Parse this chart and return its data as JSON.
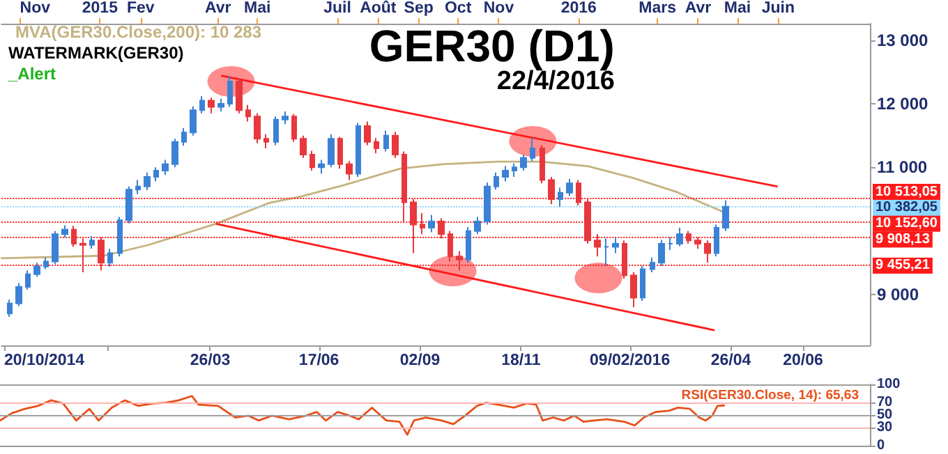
{
  "chart_data": [
    {
      "type": "candlestick",
      "title": "GER30 (D1)",
      "subtitle": "22/4/2016",
      "annotations": [
        "WATERMARK(GER30)",
        "_Alert"
      ],
      "x": [
        "2014-10-24",
        "2014-10-31",
        "2014-11-07",
        "2014-11-14",
        "2014-11-21",
        "2014-11-28",
        "2014-12-05",
        "2014-12-12",
        "2014-12-19",
        "2014-12-26",
        "2015-01-02",
        "2015-01-09",
        "2015-01-16",
        "2015-01-23",
        "2015-01-30",
        "2015-02-06",
        "2015-02-13",
        "2015-02-20",
        "2015-02-27",
        "2015-03-06",
        "2015-03-13",
        "2015-03-20",
        "2015-03-27",
        "2015-04-03",
        "2015-04-10",
        "2015-04-17",
        "2015-04-24",
        "2015-05-01",
        "2015-05-08",
        "2015-05-15",
        "2015-05-22",
        "2015-05-29",
        "2015-06-05",
        "2015-06-12",
        "2015-06-19",
        "2015-06-26",
        "2015-07-03",
        "2015-07-10",
        "2015-07-17",
        "2015-07-24",
        "2015-07-31",
        "2015-08-07",
        "2015-08-14",
        "2015-08-21",
        "2015-08-28",
        "2015-09-04",
        "2015-09-11",
        "2015-09-18",
        "2015-09-25",
        "2015-10-02",
        "2015-10-09",
        "2015-10-16",
        "2015-10-23",
        "2015-10-30",
        "2015-11-06",
        "2015-11-13",
        "2015-11-20",
        "2015-11-27",
        "2015-12-04",
        "2015-12-11",
        "2015-12-18",
        "2015-12-25",
        "2016-01-01",
        "2016-01-08",
        "2016-01-15",
        "2016-01-22",
        "2016-01-29",
        "2016-02-05",
        "2016-02-12",
        "2016-02-19",
        "2016-02-26",
        "2016-03-04",
        "2016-03-11",
        "2016-03-18",
        "2016-03-25",
        "2016-04-01",
        "2016-04-08",
        "2016-04-15",
        "2016-04-22"
      ],
      "ohlc": [
        [
          8700,
          8920,
          8650,
          8860
        ],
        [
          8860,
          9180,
          8820,
          9120
        ],
        [
          9120,
          9380,
          9080,
          9320
        ],
        [
          9320,
          9500,
          9280,
          9440
        ],
        [
          9440,
          9580,
          9400,
          9520
        ],
        [
          9520,
          10000,
          9480,
          9950
        ],
        [
          9950,
          10090,
          9900,
          10020
        ],
        [
          10020,
          10080,
          9750,
          9800
        ],
        [
          9800,
          9880,
          9350,
          9780
        ],
        [
          9780,
          9920,
          9720,
          9850
        ],
        [
          9850,
          9900,
          9380,
          9500
        ],
        [
          9500,
          9720,
          9440,
          9650
        ],
        [
          9650,
          10220,
          9600,
          10170
        ],
        [
          10170,
          10700,
          10120,
          10650
        ],
        [
          10650,
          10800,
          10580,
          10700
        ],
        [
          10700,
          10920,
          10640,
          10850
        ],
        [
          10850,
          11000,
          10780,
          10950
        ],
        [
          10950,
          11120,
          10880,
          11050
        ],
        [
          11050,
          11450,
          11000,
          11400
        ],
        [
          11400,
          11620,
          11340,
          11550
        ],
        [
          11550,
          11960,
          11500,
          11900
        ],
        [
          11900,
          12120,
          11850,
          12050
        ],
        [
          12050,
          12100,
          11850,
          11950
        ],
        [
          11950,
          12080,
          11880,
          12000
        ],
        [
          12000,
          12435,
          11950,
          12350
        ],
        [
          12350,
          12400,
          11850,
          11900
        ],
        [
          11900,
          11980,
          11720,
          11800
        ],
        [
          11800,
          11850,
          11380,
          11450
        ],
        [
          11450,
          11520,
          11300,
          11400
        ],
        [
          11400,
          11800,
          11350,
          11750
        ],
        [
          11750,
          11880,
          11680,
          11800
        ],
        [
          11800,
          11840,
          11400,
          11450
        ],
        [
          11450,
          11500,
          11150,
          11200
        ],
        [
          11200,
          11260,
          10950,
          11000
        ],
        [
          11000,
          11120,
          10900,
          11050
        ],
        [
          11050,
          11520,
          11000,
          11450
        ],
        [
          11450,
          11480,
          10980,
          11050
        ],
        [
          11050,
          11100,
          10800,
          10900
        ],
        [
          10900,
          11700,
          10850,
          11650
        ],
        [
          11650,
          11720,
          11350,
          11400
        ],
        [
          11400,
          11460,
          11220,
          11300
        ],
        [
          11300,
          11580,
          11250,
          11500
        ],
        [
          11500,
          11560,
          11150,
          11200
        ],
        [
          11200,
          11250,
          10150,
          10450
        ],
        [
          10450,
          10500,
          9650,
          10100
        ],
        [
          10100,
          10280,
          9950,
          10050
        ],
        [
          10050,
          10250,
          9980,
          10150
        ],
        [
          10150,
          10200,
          9880,
          9950
        ],
        [
          9950,
          10000,
          9520,
          9600
        ],
        [
          9600,
          9680,
          9380,
          9550
        ],
        [
          9550,
          10060,
          9500,
          10000
        ],
        [
          10000,
          10220,
          9950,
          10150
        ],
        [
          10150,
          10760,
          10100,
          10700
        ],
        [
          10700,
          10920,
          10650,
          10850
        ],
        [
          10850,
          11020,
          10780,
          10950
        ],
        [
          10950,
          11060,
          10850,
          11000
        ],
        [
          11000,
          11200,
          10950,
          11150
        ],
        [
          11150,
          11460,
          11100,
          11300
        ],
        [
          11300,
          11350,
          10750,
          10800
        ],
        [
          10800,
          10850,
          10420,
          10500
        ],
        [
          10500,
          10680,
          10380,
          10600
        ],
        [
          10600,
          10820,
          10550,
          10750
        ],
        [
          10750,
          10800,
          10400,
          10450
        ],
        [
          10450,
          10500,
          9800,
          9850
        ],
        [
          9850,
          9950,
          9600,
          9750
        ],
        [
          9750,
          9880,
          9450,
          9750
        ],
        [
          9750,
          9900,
          9650,
          9800
        ],
        [
          9800,
          9850,
          9250,
          9300
        ],
        [
          9300,
          9350,
          8800,
          8950
        ],
        [
          8950,
          9450,
          8900,
          9400
        ],
        [
          9400,
          9580,
          9350,
          9500
        ],
        [
          9500,
          9860,
          9450,
          9800
        ],
        [
          9800,
          9900,
          9700,
          9800
        ],
        [
          9800,
          10050,
          9760,
          9950
        ],
        [
          9950,
          10000,
          9800,
          9850
        ],
        [
          9850,
          9900,
          9720,
          9800
        ],
        [
          9800,
          9850,
          9500,
          9650
        ],
        [
          9650,
          10100,
          9600,
          10050
        ],
        [
          10050,
          10480,
          10000,
          10382.05
        ]
      ],
      "series": [
        {
          "type": "line",
          "name": "MVA(GER30.Close,200): 10 283",
          "color": "#c4b27f",
          "x": [
            "2014-10-18",
            "2015-01-04",
            "2015-02-07",
            "2015-03-30",
            "2015-05-10",
            "2015-06-03",
            "2015-07-06",
            "2015-08-18",
            "2015-09-19",
            "2015-10-31",
            "2015-12-03",
            "2016-01-08",
            "2016-02-12",
            "2016-03-16",
            "2016-04-22"
          ],
          "values": [
            9570,
            9610,
            9780,
            10110,
            10440,
            10540,
            10720,
            10980,
            11050,
            11090,
            11090,
            11020,
            10830,
            10610,
            10283
          ]
        },
        {
          "type": "line",
          "color": "#ff1a1a",
          "x": [
            "2015-04-04",
            "2016-05-31"
          ],
          "values": [
            12440,
            10700
          ]
        },
        {
          "type": "line",
          "color": "#ff1a1a",
          "x": [
            "2015-03-31",
            "2016-04-13"
          ],
          "values": [
            10110,
            8440
          ]
        },
        {
          "type": "scatter",
          "color": "#ff3030",
          "marker": "circle",
          "x": [
            "2015-04-11",
            "2015-11-27",
            "2015-09-27",
            "2016-01-16"
          ],
          "values": [
            12350,
            11410,
            9370,
            9260
          ]
        }
      ],
      "marker": "none",
      "legend": "top left",
      "xlim": [
        "2014-10-18",
        "2016-08-10"
      ],
      "xticks": [
        {
          "value": "2014-10-20",
          "label": "20/10/2014"
        },
        {
          "value": "2015-01-07",
          "label": null
        },
        {
          "value": "2015-03-26",
          "label": "26/03"
        },
        {
          "value": "2015-06-17",
          "label": "17/06"
        },
        {
          "value": "2015-09-02",
          "label": "02/09"
        },
        {
          "value": "2015-11-18",
          "label": "18/11"
        },
        {
          "value": "2016-02-09",
          "label": "09/02/2016"
        },
        {
          "value": "2016-04-26",
          "label": "26/04"
        },
        {
          "value": "2016-06-20",
          "label": "20/06"
        }
      ],
      "x2lim": [
        "2014-10-18",
        "2016-08-10"
      ],
      "x2ticks": [
        {
          "value": "2014-11-01",
          "label": "Nov"
        },
        {
          "value": "2015-01-01",
          "label": "2015"
        },
        {
          "value": "2015-02-01",
          "label": "Fev"
        },
        {
          "value": "2015-04-01",
          "label": "Avr"
        },
        {
          "value": "2015-05-01",
          "label": "Mai"
        },
        {
          "value": "2015-07-01",
          "label": "Juil"
        },
        {
          "value": "2015-08-01",
          "label": "Août"
        },
        {
          "value": "2015-09-01",
          "label": "Sep"
        },
        {
          "value": "2015-10-01",
          "label": "Oct"
        },
        {
          "value": "2015-11-01",
          "label": "Nov"
        },
        {
          "value": "2016-01-01",
          "label": "2016"
        },
        {
          "value": "2016-03-01",
          "label": "Mars"
        },
        {
          "value": "2016-04-01",
          "label": "Avr"
        },
        {
          "value": "2016-05-01",
          "label": "Mai"
        },
        {
          "value": "2016-06-01",
          "label": "Juin"
        }
      ],
      "ylim": [
        8200,
        13260
      ],
      "yticks": [
        {
          "value": 9000,
          "label": "9 000"
        },
        {
          "value": 11000,
          "label": "11 000"
        },
        {
          "value": 12000,
          "label": "12 000"
        },
        {
          "value": 13000,
          "label": "13 000"
        }
      ],
      "ref_lines": [
        {
          "axis": "y",
          "value": 10513.05,
          "label": "10 513,05",
          "color": "#ff1a1a",
          "line_style": "dotted"
        },
        {
          "axis": "y",
          "value": 10382.05,
          "label": "10 382,05",
          "color": "#8fd8ff",
          "line_style": "dotted"
        },
        {
          "axis": "y",
          "value": 10152.6,
          "label": "10 152,60",
          "color": "#ff1a1a",
          "line_style": "dotted"
        },
        {
          "axis": "y",
          "value": 9908.13,
          "label": "9 908,13",
          "color": "#ff1a1a",
          "line_style": "dotted"
        },
        {
          "axis": "y",
          "value": 9455.21,
          "label": "9 455,21",
          "color": "#ff1a1a",
          "line_style": "dotted"
        }
      ]
    },
    {
      "type": "line",
      "series": [
        {
          "name": "RSI(GER30.Close, 14): 65,63",
          "color": "#e8501a",
          "x": [
            "2014-10-18",
            "2014-10-27",
            "2014-11-06",
            "2014-11-16",
            "2014-11-26",
            "2014-12-05",
            "2014-12-15",
            "2014-12-25",
            "2015-01-01",
            "2015-01-11",
            "2015-01-21",
            "2015-01-31",
            "2015-02-12",
            "2015-02-21",
            "2015-03-03",
            "2015-03-13",
            "2015-03-18",
            "2015-04-02",
            "2015-04-15",
            "2015-04-25",
            "2015-05-03",
            "2015-05-13",
            "2015-05-26",
            "2015-06-08",
            "2015-06-16",
            "2015-06-23",
            "2015-07-02",
            "2015-07-11",
            "2015-07-18",
            "2015-07-28",
            "2015-08-08",
            "2015-08-18",
            "2015-08-24",
            "2015-08-29",
            "2015-09-07",
            "2015-09-19",
            "2015-09-28",
            "2015-10-07",
            "2015-10-16",
            "2015-10-23",
            "2015-11-01",
            "2015-11-13",
            "2015-11-23",
            "2015-11-30",
            "2015-12-05",
            "2015-12-13",
            "2015-12-21",
            "2015-12-29",
            "2016-01-05",
            "2016-01-13",
            "2016-01-23",
            "2016-02-05",
            "2016-02-13",
            "2016-02-20",
            "2016-02-29",
            "2016-03-10",
            "2016-03-17",
            "2016-03-26",
            "2016-04-02",
            "2016-04-07",
            "2016-04-12",
            "2016-04-16",
            "2016-04-21"
          ],
          "values": [
            41,
            53,
            60,
            65,
            74,
            69,
            41,
            60,
            41,
            62,
            74,
            65,
            69,
            70,
            74,
            81,
            67,
            65,
            46,
            49,
            41,
            49,
            43,
            49,
            55,
            41,
            55,
            49,
            43,
            62,
            41,
            39,
            18,
            41,
            46,
            41,
            35,
            49,
            65,
            70,
            67,
            62,
            69,
            67,
            41,
            46,
            41,
            49,
            39,
            41,
            43,
            39,
            33,
            46,
            55,
            57,
            62,
            60,
            46,
            41,
            49,
            65,
            65.63
          ]
        }
      ],
      "legend": "top right",
      "tick_labels": "y",
      "xlim": [
        "2014-10-18",
        "2016-08-10"
      ],
      "ylim": [
        0,
        100
      ],
      "yticks": [
        0,
        30,
        50,
        70,
        100
      ],
      "ref_lines": [
        {
          "axis": "y",
          "value": 100,
          "color": "#a0a0a0"
        },
        {
          "axis": "y",
          "value": 70,
          "color": "#ffb3b3"
        },
        {
          "axis": "y",
          "value": 50,
          "color": "#a0a0a0"
        },
        {
          "axis": "y",
          "value": 30,
          "color": "#ffb3b3"
        }
      ]
    }
  ]
}
